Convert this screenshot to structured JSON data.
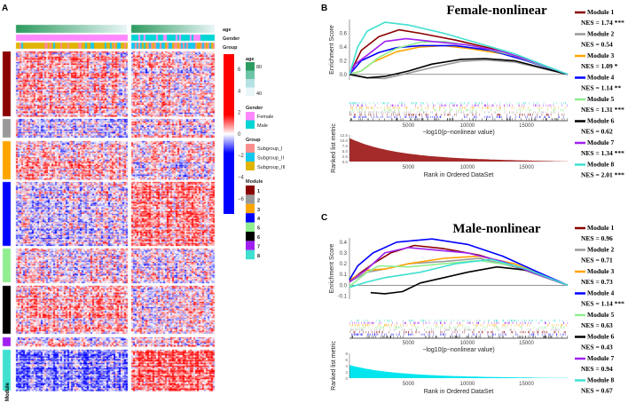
{
  "panel_labels": {
    "a": "A",
    "b": "B",
    "c": "C"
  },
  "heatmap": {
    "annotation_labels": [
      "age",
      "Gender",
      "Group"
    ],
    "row_annotation_label": "Module",
    "color_scale": {
      "ticks": [
        "6",
        "4",
        "2",
        "0",
        "−2",
        "−4",
        "−6"
      ],
      "high": "#ff0000",
      "mid": "#ffffff",
      "low": "#0000ff"
    },
    "legend": {
      "age": {
        "title": "age",
        "max": "80",
        "min": "40",
        "colors": [
          "#2e9b5f",
          "#6cc5a8",
          "#b5e2e2",
          "#eaf6f8"
        ]
      },
      "gender": {
        "title": "Gender",
        "items": [
          {
            "label": "Female",
            "color": "#ff88ff"
          },
          {
            "label": "Male",
            "color": "#00d5d5"
          }
        ]
      },
      "group": {
        "title": "Group",
        "items": [
          {
            "label": "Subgroup_I",
            "color": "#fa8e8e"
          },
          {
            "label": "Subgroup_II",
            "color": "#14c8f0"
          },
          {
            "label": "Subgroup_III",
            "color": "#e0b400"
          }
        ]
      },
      "module": {
        "title": "Module",
        "items": [
          {
            "label": "1",
            "color": "#8b0000"
          },
          {
            "label": "2",
            "color": "#999999"
          },
          {
            "label": "3",
            "color": "#ffa500"
          },
          {
            "label": "4",
            "color": "#0000ff"
          },
          {
            "label": "5",
            "color": "#90ee90"
          },
          {
            "label": "6",
            "color": "#000000"
          },
          {
            "label": "7",
            "color": "#a020f0"
          },
          {
            "label": "8",
            "color": "#40e0d0"
          }
        ]
      }
    }
  },
  "chart_data": [
    {
      "type": "line",
      "title": "Female-nonlinear",
      "ylabel": "Enrichment Score",
      "xlabel": "−log10(p−nonlinear value)",
      "ranked_ylabel": "Ranked list metric",
      "ranked_xlabel": "Rank in Ordered DataSet",
      "ranked_color": "#a52a2a",
      "ranked_max": 11,
      "yticks": [
        "0.0",
        "0.2",
        "0.4",
        "0.6"
      ],
      "ytick_values": [
        0,
        0.2,
        0.4,
        0.6
      ],
      "ylim": [
        -0.08,
        0.8
      ],
      "xticks": [
        "5000",
        "10000",
        "15000"
      ],
      "xlim": [
        0,
        18500
      ],
      "ranked_yticks": [
        "0.0",
        "2.5",
        "5.0",
        "7.5",
        "10.0",
        "12.5"
      ],
      "ranked_ylim": [
        0,
        12.5
      ],
      "series": [
        {
          "name": "Module 1",
          "nes": "NES = 1.74 ***",
          "color": "#8b0000",
          "points": [
            [
              0,
              0
            ],
            [
              1000,
              0.35
            ],
            [
              2500,
              0.55
            ],
            [
              4200,
              0.65
            ],
            [
              6000,
              0.6
            ],
            [
              9000,
              0.5
            ],
            [
              12000,
              0.38
            ],
            [
              15000,
              0.22
            ],
            [
              18500,
              0
            ]
          ]
        },
        {
          "name": "Module 2",
          "nes": "NES = 0.54",
          "color": "#999999",
          "points": [
            [
              0,
              0
            ],
            [
              1500,
              -0.05
            ],
            [
              3000,
              -0.06
            ],
            [
              5000,
              0.02
            ],
            [
              7000,
              0.1
            ],
            [
              9500,
              0.19
            ],
            [
              11500,
              0.21
            ],
            [
              14000,
              0.18
            ],
            [
              18500,
              0
            ]
          ]
        },
        {
          "name": "Module 3",
          "nes": "NES = 1.09 *",
          "color": "#ffa500",
          "points": [
            [
              0,
              0
            ],
            [
              1000,
              0.05
            ],
            [
              2000,
              0.18
            ],
            [
              4000,
              0.33
            ],
            [
              6000,
              0.4
            ],
            [
              8000,
              0.42
            ],
            [
              10000,
              0.38
            ],
            [
              13000,
              0.3
            ],
            [
              16000,
              0.15
            ],
            [
              18500,
              0
            ]
          ]
        },
        {
          "name": "Module 4",
          "nes": "NES = 1.14 **",
          "color": "#0000ff",
          "points": [
            [
              0,
              0
            ],
            [
              1000,
              0.2
            ],
            [
              2500,
              0.32
            ],
            [
              4000,
              0.39
            ],
            [
              6000,
              0.42
            ],
            [
              9000,
              0.42
            ],
            [
              12000,
              0.35
            ],
            [
              15000,
              0.2
            ],
            [
              18500,
              0
            ]
          ]
        },
        {
          "name": "Module 5",
          "nes": "NES = 1.31 ***",
          "color": "#90ee90",
          "points": [
            [
              0,
              0
            ],
            [
              1000,
              0.05
            ],
            [
              2500,
              0.25
            ],
            [
              4000,
              0.38
            ],
            [
              6000,
              0.47
            ],
            [
              8000,
              0.48
            ],
            [
              11000,
              0.4
            ],
            [
              14000,
              0.27
            ],
            [
              18500,
              0
            ]
          ]
        },
        {
          "name": "Module 6",
          "nes": "NES = 0.62",
          "color": "#000000",
          "points": [
            [
              0,
              0
            ],
            [
              1500,
              -0.05
            ],
            [
              3000,
              -0.03
            ],
            [
              5000,
              0.05
            ],
            [
              7000,
              0.15
            ],
            [
              9500,
              0.22
            ],
            [
              11500,
              0.23
            ],
            [
              14000,
              0.2
            ],
            [
              18500,
              0
            ]
          ]
        },
        {
          "name": "Module 7",
          "nes": "NES = 1.34 ***",
          "color": "#a020f0",
          "points": [
            [
              0,
              0
            ],
            [
              500,
              0.15
            ],
            [
              1500,
              0.28
            ],
            [
              3000,
              0.48
            ],
            [
              4800,
              0.52
            ],
            [
              7000,
              0.48
            ],
            [
              10000,
              0.43
            ],
            [
              13000,
              0.33
            ],
            [
              16000,
              0.16
            ],
            [
              18500,
              0
            ]
          ]
        },
        {
          "name": "Module 8",
          "nes": "NES = 2.01 ***",
          "color": "#40e0d0",
          "points": [
            [
              0,
              0
            ],
            [
              700,
              0.4
            ],
            [
              1500,
              0.63
            ],
            [
              3000,
              0.76
            ],
            [
              5000,
              0.72
            ],
            [
              8000,
              0.6
            ],
            [
              11000,
              0.45
            ],
            [
              14000,
              0.3
            ],
            [
              18500,
              0
            ]
          ]
        }
      ]
    },
    {
      "type": "line",
      "title": "Male-nonlinear",
      "ylabel": "Enrichment Score",
      "xlabel": "−log10(p−nonlinear value)",
      "ranked_ylabel": "Ranked list metric",
      "ranked_xlabel": "Rank in Ordered DataSet",
      "ranked_color": "#00e5ee",
      "ranked_max": 4.2,
      "yticks": [
        "-0.1",
        "0.0",
        "0.1",
        "0.2",
        "0.3",
        "0.4"
      ],
      "ytick_values": [
        -0.1,
        0,
        0.1,
        0.2,
        0.3,
        0.4
      ],
      "ylim": [
        -0.13,
        0.44
      ],
      "xticks": [
        "5000",
        "10000",
        "15000"
      ],
      "xlim": [
        0,
        18500
      ],
      "ranked_yticks": [
        "0",
        "2",
        "4",
        "6",
        "8"
      ],
      "ranked_ylim": [
        0,
        8
      ],
      "series": [
        {
          "name": "Module 1",
          "nes": "NES = 0.96",
          "color": "#8b0000",
          "points": [
            [
              0,
              0.04
            ],
            [
              1000,
              0.12
            ],
            [
              2000,
              0.2
            ],
            [
              3500,
              0.3
            ],
            [
              5500,
              0.37
            ],
            [
              8000,
              0.34
            ],
            [
              11000,
              0.28
            ],
            [
              14000,
              0.18
            ],
            [
              18500,
              0
            ]
          ]
        },
        {
          "name": "Module 2",
          "nes": "NES = 0.71",
          "color": "#999999",
          "points": [
            [
              0,
              0.03
            ],
            [
              1500,
              0.12
            ],
            [
              3000,
              0.15
            ],
            [
              5000,
              0.2
            ],
            [
              8000,
              0.22
            ],
            [
              11000,
              0.25
            ],
            [
              14000,
              0.17
            ],
            [
              18500,
              0
            ]
          ]
        },
        {
          "name": "Module 3",
          "nes": "NES = 0.73",
          "color": "#ffa500",
          "points": [
            [
              0,
              0.05
            ],
            [
              1500,
              0.14
            ],
            [
              3000,
              0.15
            ],
            [
              5000,
              0.2
            ],
            [
              8000,
              0.25
            ],
            [
              11000,
              0.27
            ],
            [
              14000,
              0.2
            ],
            [
              18500,
              0
            ]
          ]
        },
        {
          "name": "Module 4",
          "nes": "NES = 1.14 ***",
          "color": "#0000ff",
          "points": [
            [
              0,
              0.05
            ],
            [
              700,
              0.18
            ],
            [
              2000,
              0.3
            ],
            [
              4000,
              0.4
            ],
            [
              7000,
              0.43
            ],
            [
              10000,
              0.38
            ],
            [
              13000,
              0.27
            ],
            [
              16000,
              0.12
            ],
            [
              18500,
              0
            ]
          ]
        },
        {
          "name": "Module 5",
          "nes": "NES = 0.63",
          "color": "#90ee90",
          "points": [
            [
              0,
              -0.01
            ],
            [
              1500,
              0.12
            ],
            [
              2500,
              0.18
            ],
            [
              5000,
              0.17
            ],
            [
              8000,
              0.2
            ],
            [
              11000,
              0.23
            ],
            [
              14000,
              0.18
            ],
            [
              18500,
              0
            ]
          ]
        },
        {
          "name": "Module 6",
          "nes": "NES = 0.43",
          "color": "#000000",
          "points": [
            [
              1800,
              -0.07
            ],
            [
              3000,
              -0.08
            ],
            [
              4500,
              -0.06
            ],
            [
              6000,
              0.02
            ],
            [
              8000,
              0.07
            ],
            [
              10000,
              0.12
            ],
            [
              12500,
              0.17
            ],
            [
              15000,
              0.14
            ],
            [
              18500,
              0
            ]
          ]
        },
        {
          "name": "Module 7",
          "nes": "NES = 0.94",
          "color": "#a020f0",
          "points": [
            [
              0,
              0.03
            ],
            [
              1500,
              0.15
            ],
            [
              3000,
              0.3
            ],
            [
              5000,
              0.35
            ],
            [
              7000,
              0.33
            ],
            [
              10000,
              0.3
            ],
            [
              13000,
              0.22
            ],
            [
              18500,
              0
            ]
          ]
        },
        {
          "name": "Module 8",
          "nes": "NES = 0.67",
          "color": "#40e0d0",
          "points": [
            [
              0,
              -0.02
            ],
            [
              1500,
              0.03
            ],
            [
              3000,
              0.07
            ],
            [
              6000,
              0.12
            ],
            [
              9000,
              0.2
            ],
            [
              12000,
              0.24
            ],
            [
              15000,
              0.15
            ],
            [
              18500,
              0
            ]
          ]
        }
      ]
    }
  ]
}
